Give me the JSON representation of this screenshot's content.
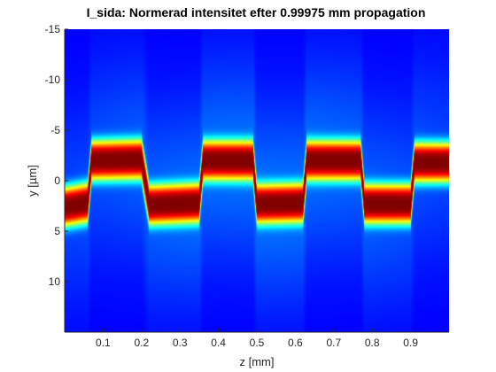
{
  "chart_data": {
    "type": "heatmap",
    "title": "I_sida: Normerad intensitet efter 0.99975 mm propagation",
    "xlabel": "z [mm]",
    "ylabel": "y [µm]",
    "xlim": [
      0,
      1
    ],
    "ylim": [
      -15,
      15
    ],
    "y_reversed": true,
    "colormap": "jet",
    "x_ticks": [
      0.1,
      0.2,
      0.3,
      0.4,
      0.5,
      0.6,
      0.7,
      0.8,
      0.9
    ],
    "x_tick_labels": [
      "0.1",
      "0.2",
      "0.3",
      "0.4",
      "0.5",
      "0.6",
      "0.7",
      "0.8",
      "0.9"
    ],
    "y_ticks": [
      -15,
      -10,
      -5,
      0,
      5,
      10
    ],
    "y_tick_labels": [
      "-15",
      "-10",
      "-5",
      "0",
      "5",
      "10"
    ],
    "beam_centers": [
      {
        "z": 0.0,
        "y": 2.6
      },
      {
        "z": 0.06,
        "y": 2.2
      },
      {
        "z": 0.07,
        "y": -2.0
      },
      {
        "z": 0.2,
        "y": -2.1
      },
      {
        "z": 0.22,
        "y": 2.4
      },
      {
        "z": 0.35,
        "y": 2.2
      },
      {
        "z": 0.36,
        "y": -2.0
      },
      {
        "z": 0.49,
        "y": -2.0
      },
      {
        "z": 0.5,
        "y": 2.3
      },
      {
        "z": 0.62,
        "y": 2.2
      },
      {
        "z": 0.63,
        "y": -2.0
      },
      {
        "z": 0.77,
        "y": -2.0
      },
      {
        "z": 0.78,
        "y": 2.3
      },
      {
        "z": 0.9,
        "y": 2.3
      },
      {
        "z": 0.91,
        "y": -1.8
      },
      {
        "z": 1.0,
        "y": -1.8
      }
    ],
    "beam_width_um": 1.6,
    "background_level": 0.12
  }
}
